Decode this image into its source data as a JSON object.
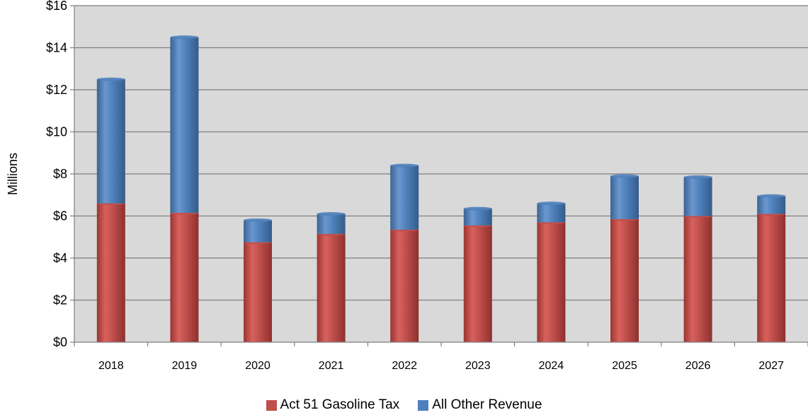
{
  "chart_data": {
    "type": "bar",
    "stacked": true,
    "title": "",
    "xlabel": "",
    "ylabel": "Millions",
    "ylim": [
      0,
      16
    ],
    "yticks": [
      0,
      2,
      4,
      6,
      8,
      10,
      12,
      14,
      16
    ],
    "ytick_labels": [
      "$0",
      "$2",
      "$4",
      "$6",
      "$8",
      "$10",
      "$12",
      "$14",
      "$16"
    ],
    "categories": [
      "2018",
      "2019",
      "2020",
      "2021",
      "2022",
      "2023",
      "2024",
      "2025",
      "2026",
      "2027"
    ],
    "series": [
      {
        "name": "Act 51 Gasoline Tax",
        "color": "#c0504d",
        "values": [
          6.6,
          6.15,
          4.75,
          5.15,
          5.35,
          5.55,
          5.7,
          5.85,
          6.0,
          6.1
        ]
      },
      {
        "name": "All Other Revenue",
        "color": "#4f81bd",
        "values": [
          5.9,
          8.35,
          1.05,
          0.95,
          3.05,
          0.8,
          0.9,
          2.05,
          1.85,
          0.85
        ]
      }
    ],
    "grid": true,
    "plot_background": "#d9d9d9",
    "legend_position": "bottom"
  }
}
